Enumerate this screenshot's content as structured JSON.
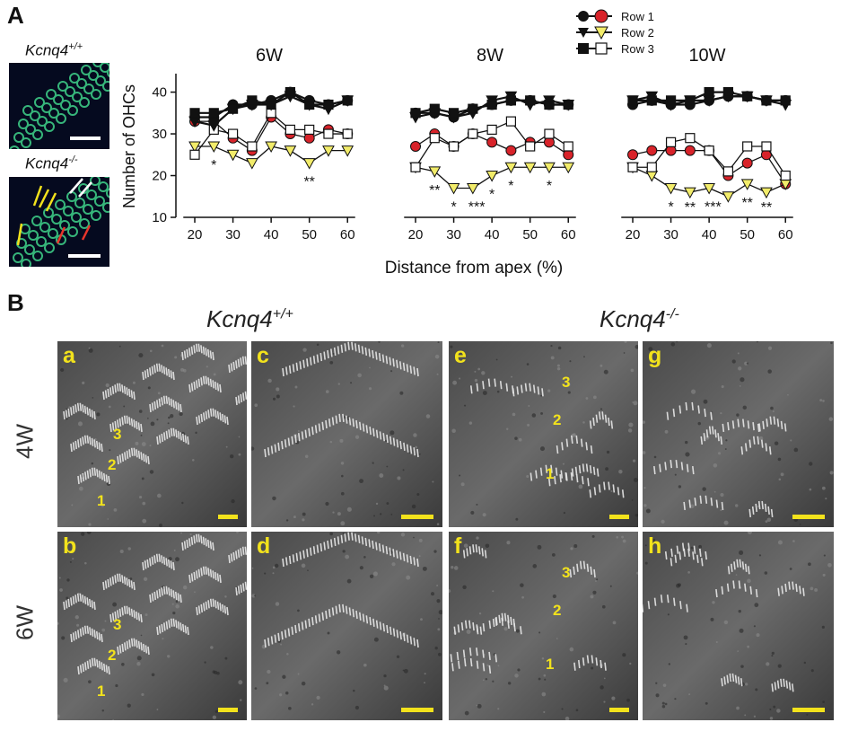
{
  "panel_a": {
    "letter": "A",
    "genotype_wt": "Kcnq4",
    "genotype_wt_sup": "+/+",
    "genotype_ko": "Kcnq4",
    "genotype_ko_sup": "-/-"
  },
  "panel_b": {
    "letter": "B",
    "genotype_wt": "Kcnq4",
    "genotype_wt_sup": "+/+",
    "genotype_ko": "Kcnq4",
    "genotype_ko_sup": "-/-",
    "row_labels": [
      "4W",
      "6W"
    ],
    "sublabels": [
      "a",
      "b",
      "c",
      "d",
      "e",
      "f",
      "g",
      "h"
    ],
    "row_numbers": [
      "1",
      "2",
      "3"
    ]
  },
  "legend": {
    "entries": [
      "Row 1",
      "Row 2",
      "Row 3"
    ]
  },
  "chart_data": {
    "type": "line",
    "ylabel": "Number of OHCs",
    "xlabel": "Distance from apex (%)",
    "x": [
      20,
      25,
      30,
      35,
      40,
      45,
      50,
      55,
      60
    ],
    "xticks": [
      20,
      30,
      40,
      50,
      60
    ],
    "yticks": [
      10,
      20,
      30,
      40
    ],
    "ylim": [
      10,
      44
    ],
    "xlim": [
      16,
      63
    ],
    "colors": {
      "row1_ko": "#d8232a",
      "row2_ko": "#f2ec6a",
      "row3_ko": "#ffffff",
      "wt": "#111111"
    },
    "panels": [
      {
        "title": "6W",
        "series": [
          {
            "name": "WT Row 1",
            "values": [
              34,
              34,
              37,
              37,
              38,
              40,
              38,
              37,
              38
            ]
          },
          {
            "name": "WT Row 2",
            "values": [
              33,
              32,
              36,
              37,
              37,
              39,
              37,
              36,
              38
            ]
          },
          {
            "name": "WT Row 3",
            "values": [
              35,
              35,
              36,
              38,
              37,
              40,
              37,
              37,
              38
            ]
          },
          {
            "name": "KO Row 1",
            "values": [
              33,
              33,
              29,
              26,
              34,
              30,
              29,
              31,
              30
            ]
          },
          {
            "name": "KO Row 2",
            "values": [
              27,
              27,
              25,
              23,
              27,
              26,
              23,
              26,
              26
            ]
          },
          {
            "name": "KO Row 3",
            "values": [
              25,
              31,
              30,
              27,
              35,
              31,
              31,
              30,
              30
            ]
          }
        ],
        "significance": [
          {
            "x": 25,
            "label": "*"
          },
          {
            "x": 50,
            "label": "**"
          }
        ]
      },
      {
        "title": "8W",
        "series": [
          {
            "name": "WT Row 1",
            "values": [
              35,
              35,
              34,
              36,
              37,
              38,
              38,
              37,
              37
            ]
          },
          {
            "name": "WT Row 2",
            "values": [
              34,
              35,
              34,
              35,
              38,
              39,
              37,
              38,
              37
            ]
          },
          {
            "name": "WT Row 3",
            "values": [
              35,
              36,
              35,
              36,
              37,
              38,
              38,
              37,
              37
            ]
          },
          {
            "name": "KO Row 1",
            "values": [
              27,
              30,
              27,
              30,
              28,
              26,
              28,
              28,
              25
            ]
          },
          {
            "name": "KO Row 2",
            "values": [
              22,
              21,
              17,
              17,
              20,
              22,
              22,
              22,
              22
            ]
          },
          {
            "name": "KO Row 3",
            "values": [
              22,
              29,
              27,
              30,
              31,
              33,
              27,
              30,
              27
            ]
          }
        ],
        "significance": [
          {
            "x": 25,
            "label": "**"
          },
          {
            "x": 30,
            "label": "*"
          },
          {
            "x": 36,
            "label": "***"
          },
          {
            "x": 40,
            "label": "*"
          },
          {
            "x": 45,
            "label": "*"
          },
          {
            "x": 55,
            "label": "*"
          }
        ]
      },
      {
        "title": "10W",
        "series": [
          {
            "name": "WT Row 1",
            "values": [
              37,
              38,
              37,
              37,
              38,
              39,
              39,
              38,
              38
            ]
          },
          {
            "name": "WT Row 2",
            "values": [
              38,
              39,
              37,
              38,
              38,
              39,
              39,
              38,
              37
            ]
          },
          {
            "name": "WT Row 3",
            "values": [
              38,
              38,
              38,
              38,
              40,
              40,
              39,
              38,
              38
            ]
          },
          {
            "name": "KO Row 1",
            "values": [
              25,
              26,
              26,
              26,
              26,
              20,
              23,
              25,
              18
            ]
          },
          {
            "name": "KO Row 2",
            "values": [
              22,
              20,
              17,
              16,
              17,
              15,
              18,
              16,
              18
            ]
          },
          {
            "name": "KO Row 3",
            "values": [
              22,
              22,
              28,
              29,
              26,
              21,
              27,
              27,
              20
            ]
          }
        ],
        "significance": [
          {
            "x": 30,
            "label": "*"
          },
          {
            "x": 35,
            "label": "**"
          },
          {
            "x": 41,
            "label": "***"
          },
          {
            "x": 50,
            "label": "**"
          },
          {
            "x": 55,
            "label": "**"
          }
        ]
      }
    ]
  }
}
